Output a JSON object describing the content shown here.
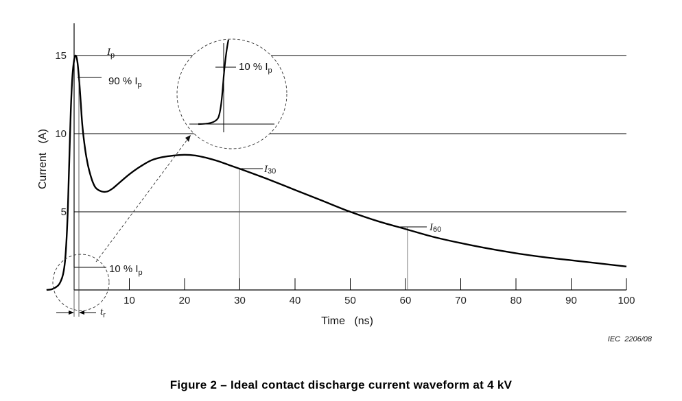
{
  "chart_data": {
    "type": "line",
    "title": "Figure 2 – Ideal contact discharge current waveform at 4 kV",
    "credit": "IEC  2206/08",
    "xlabel": "Time   (ns)",
    "ylabel": "Current   (A)",
    "xlim": [
      -5,
      100
    ],
    "ylim": [
      0,
      17
    ],
    "x_ticks": [
      10,
      20,
      30,
      40,
      50,
      60,
      70,
      80,
      90,
      100
    ],
    "y_ticks": [
      5,
      10,
      15
    ],
    "gridlines_y": [
      5,
      10,
      15
    ],
    "grid": "horizontal",
    "series": [
      {
        "name": "",
        "x": [
          -5,
          -4,
          -3,
          -2.5,
          -2,
          -1.6,
          -1.2,
          -0.9,
          -0.6,
          -0.3,
          0,
          0.3,
          0.6,
          0.9,
          1.2,
          1.5,
          2,
          2.5,
          3,
          3.5,
          4,
          5,
          6,
          7,
          8,
          10,
          12,
          14,
          16,
          18,
          20,
          22,
          24,
          26,
          28,
          30,
          35,
          40,
          45,
          50,
          55,
          60,
          65,
          70,
          75,
          80,
          85,
          90,
          95,
          100
        ],
        "y": [
          0,
          0.05,
          0.25,
          0.5,
          1.0,
          2.0,
          4.5,
          8.0,
          11.5,
          13.7,
          14.7,
          15.0,
          14.6,
          13.5,
          12.0,
          10.5,
          9.0,
          8.0,
          7.3,
          6.8,
          6.5,
          6.3,
          6.3,
          6.5,
          6.8,
          7.4,
          7.9,
          8.3,
          8.5,
          8.6,
          8.65,
          8.6,
          8.45,
          8.25,
          8.0,
          7.75,
          7.1,
          6.4,
          5.7,
          5.0,
          4.4,
          3.9,
          3.4,
          3.0,
          2.65,
          2.35,
          2.1,
          1.9,
          1.7,
          1.5
        ]
      }
    ],
    "annotations": [
      {
        "label": "I",
        "sub": "p"
      },
      {
        "label": "90 % I",
        "sub": "p"
      },
      {
        "label": "10 % I",
        "sub": "p"
      },
      {
        "label": "10 % I",
        "sub": "p"
      },
      {
        "label": "I",
        "sub": "30"
      },
      {
        "label": "I",
        "sub": "60"
      },
      {
        "label": "t",
        "sub": "r"
      }
    ]
  }
}
